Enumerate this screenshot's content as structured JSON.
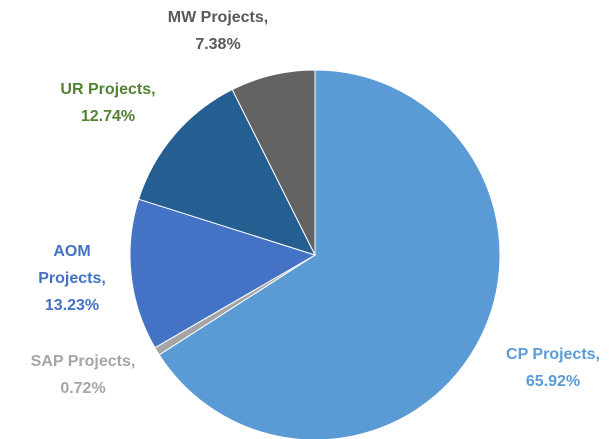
{
  "chart_data": {
    "type": "pie",
    "categories": [
      "CP Projects,",
      "SAP Projects,",
      "AOM Projects,",
      "UR Projects,",
      "MW Projects,"
    ],
    "values": [
      65.92,
      0.72,
      13.23,
      12.74,
      7.38
    ],
    "value_labels": [
      "65.92%",
      "0.72%",
      "13.23%",
      "12.74%",
      "7.38%"
    ],
    "colors": [
      "#5b9bd5",
      "#a5a5a5",
      "#4472c4",
      "#255e91",
      "#636363"
    ],
    "label_colors": [
      "#5b9bd5",
      "#a5a5a5",
      "#4472c4",
      "#548235",
      "#595959"
    ]
  }
}
